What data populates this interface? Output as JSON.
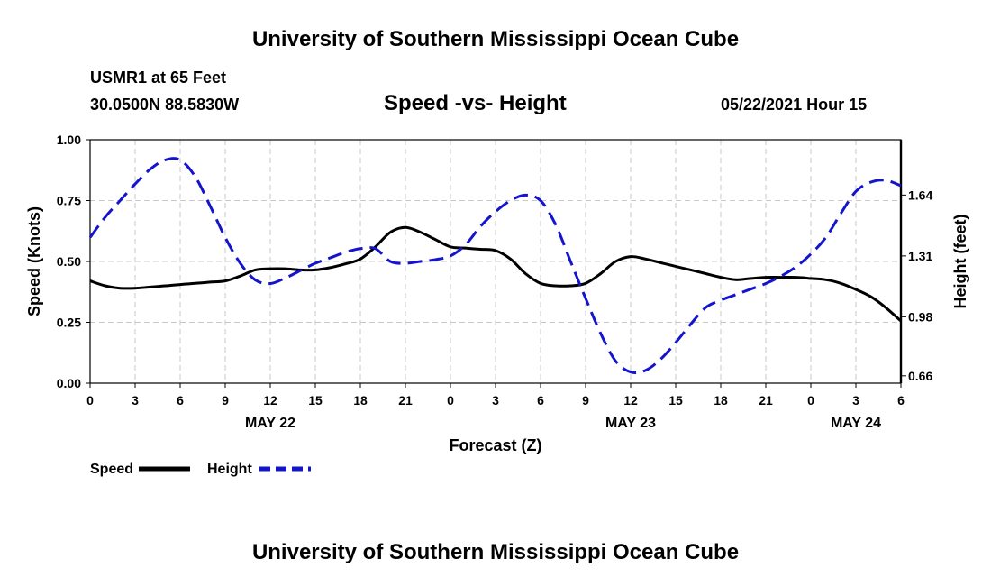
{
  "header": {
    "title": "University of Southern Mississippi Ocean Cube",
    "station": "USMR1 at 65 Feet",
    "coordinates": "30.0500N  88.5830W",
    "chart_title": "Speed -vs- Height",
    "datetime": "05/22/2021 Hour 15"
  },
  "footer": {
    "title": "University of Southern Mississippi Ocean Cube"
  },
  "chart_data": {
    "type": "line",
    "title": "Speed -vs- Height",
    "xlabel": "Forecast (Z)",
    "ylabel_left": "Speed (Knots)",
    "ylabel_right": "Height (feet)",
    "x_range": [
      0,
      54
    ],
    "x_ticks": [
      0,
      3,
      6,
      9,
      12,
      15,
      18,
      21,
      24,
      27,
      30,
      33,
      36,
      39,
      42,
      45,
      48,
      51,
      54
    ],
    "x_tick_labels": [
      "0",
      "3",
      "6",
      "9",
      "12",
      "15",
      "18",
      "21",
      "0",
      "3",
      "6",
      "9",
      "12",
      "15",
      "18",
      "21",
      "0",
      "3",
      "6"
    ],
    "date_labels": [
      {
        "text": "MAY 22",
        "x": 12
      },
      {
        "text": "MAY 23",
        "x": 36
      },
      {
        "text": "MAY 24",
        "x": 51
      }
    ],
    "y_left": {
      "range": [
        0.0,
        1.0
      ],
      "ticks": [
        0.0,
        0.25,
        0.5,
        0.75,
        1.0
      ],
      "tick_labels": [
        "0.00",
        "0.25",
        "0.50",
        "0.75",
        "1.00"
      ]
    },
    "y_right": {
      "range": [
        0.62,
        1.94
      ],
      "ticks": [
        0.66,
        0.98,
        1.31,
        1.64
      ],
      "tick_labels": [
        "0.66",
        "0.98",
        "1.31",
        "1.64"
      ]
    },
    "grid": true,
    "legend": [
      {
        "name": "Speed",
        "color": "#000000",
        "style": "solid"
      },
      {
        "name": "Height",
        "color": "#1414cc",
        "style": "dashed"
      }
    ],
    "series": [
      {
        "name": "Speed",
        "axis": "left",
        "color": "#000000",
        "x": [
          0,
          1,
          2,
          3,
          4,
          5,
          6,
          7,
          8,
          9,
          10,
          11,
          12,
          13,
          14,
          15,
          16,
          17,
          18,
          19,
          20,
          21,
          22,
          23,
          24,
          25,
          26,
          27,
          28,
          29,
          30,
          31,
          32,
          33,
          34,
          35,
          36,
          37,
          38,
          39,
          40,
          41,
          42,
          43,
          44,
          45,
          46,
          47,
          48,
          49,
          50,
          51,
          52,
          53,
          54
        ],
        "values": [
          0.42,
          0.4,
          0.39,
          0.39,
          0.395,
          0.4,
          0.405,
          0.41,
          0.415,
          0.42,
          0.44,
          0.465,
          0.47,
          0.47,
          0.465,
          0.465,
          0.475,
          0.49,
          0.51,
          0.56,
          0.62,
          0.64,
          0.62,
          0.59,
          0.56,
          0.555,
          0.55,
          0.545,
          0.51,
          0.45,
          0.41,
          0.4,
          0.4,
          0.41,
          0.45,
          0.5,
          0.52,
          0.51,
          0.495,
          0.48,
          0.465,
          0.45,
          0.435,
          0.425,
          0.43,
          0.435,
          0.435,
          0.435,
          0.43,
          0.425,
          0.41,
          0.385,
          0.355,
          0.31,
          0.255
        ]
      },
      {
        "name": "Height",
        "axis": "right",
        "color": "#1414cc",
        "x": [
          0,
          1,
          2,
          3,
          4,
          5,
          6,
          7,
          8,
          9,
          10,
          11,
          12,
          13,
          14,
          15,
          16,
          17,
          18,
          19,
          20,
          21,
          22,
          23,
          24,
          25,
          26,
          27,
          28,
          29,
          30,
          31,
          32,
          33,
          34,
          35,
          36,
          37,
          38,
          39,
          40,
          41,
          42,
          43,
          44,
          45,
          46,
          47,
          48,
          49,
          50,
          51,
          52,
          53,
          54
        ],
        "values": [
          1.41,
          1.52,
          1.61,
          1.7,
          1.78,
          1.83,
          1.83,
          1.74,
          1.58,
          1.41,
          1.27,
          1.18,
          1.16,
          1.19,
          1.23,
          1.27,
          1.3,
          1.33,
          1.35,
          1.35,
          1.28,
          1.27,
          1.28,
          1.29,
          1.31,
          1.37,
          1.47,
          1.55,
          1.61,
          1.64,
          1.61,
          1.48,
          1.28,
          1.08,
          0.89,
          0.74,
          0.68,
          0.69,
          0.75,
          0.84,
          0.94,
          1.03,
          1.07,
          1.1,
          1.13,
          1.16,
          1.2,
          1.25,
          1.32,
          1.41,
          1.54,
          1.66,
          1.71,
          1.72,
          1.69
        ]
      }
    ]
  }
}
